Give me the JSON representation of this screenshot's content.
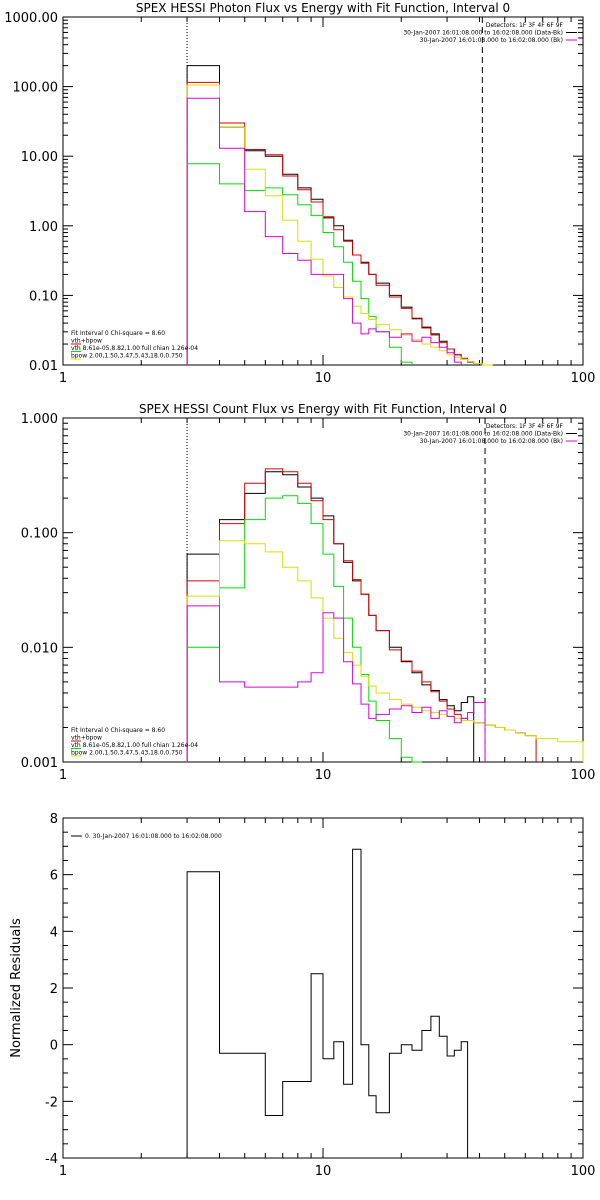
{
  "colors": {
    "data": "#000000",
    "model": "#dd0000",
    "vth": "#00dd00",
    "bpow": "#dddd00",
    "bk": "#dd00dd"
  },
  "chart_data": [
    {
      "type": "line",
      "title": "SPEX HESSI Photon Flux vs Energy with Fit Function, Interval 0",
      "xlabel": "",
      "ylabel": "",
      "xscale": "log",
      "yscale": "log",
      "xlim": [
        1,
        100
      ],
      "ylim": [
        0.01,
        1000
      ],
      "xticks": [
        {
          "v": 1,
          "label": "1"
        },
        {
          "v": 10,
          "label": "10"
        },
        {
          "v": 100,
          "label": "100"
        }
      ],
      "yticks": [
        {
          "v": 0.01,
          "label": "0.01"
        },
        {
          "v": 0.1,
          "label": "0.10"
        },
        {
          "v": 1,
          "label": "1.00"
        },
        {
          "v": 10,
          "label": "10.00"
        },
        {
          "v": 100,
          "label": "100.00"
        },
        {
          "v": 1000,
          "label": "1000.00"
        }
      ],
      "vlines": [
        {
          "x": 3,
          "style": "dotted"
        },
        {
          "x": 41,
          "style": "dashed"
        }
      ],
      "legend_right": {
        "placement": "top-right",
        "lines": [
          {
            "text": "Detectors: 1F 3F 4F 6F 9F",
            "color": ""
          },
          {
            "text": "30-Jan-2007 16:01:08.000 to 16:02:08.000 (Data-Bk)",
            "color": "data"
          },
          {
            "text": "30-Jan-2007 16:01:08.000 to 16:02:08.000 (Bk)",
            "color": "bk"
          }
        ]
      },
      "legend_left": {
        "placement": "bottom-left",
        "lines": [
          {
            "text": "Fit Interval 0   Chi-square = 8.60",
            "color": ""
          },
          {
            "text": "vth+bpow",
            "color": "model"
          },
          {
            "text": "vth 8.61e-05,8.82,1.00   full chian 1.26e-04",
            "color": "vth"
          },
          {
            "text": "bpow 2.00,1.50,3.47,5.43,18.0,0.750",
            "color": "bpow"
          }
        ]
      },
      "edges": [
        3,
        4,
        5,
        6,
        7,
        8,
        9,
        10,
        11,
        12,
        13,
        14,
        15,
        16,
        18,
        20,
        22,
        24,
        26,
        28,
        30,
        32,
        34,
        36,
        38,
        41,
        45,
        50
      ],
      "series": [
        {
          "name": "Data-Bk",
          "color": "data",
          "values": [
            200,
            26,
            12,
            10,
            5.5,
            3.5,
            2.4,
            1.3,
            1.0,
            0.62,
            0.38,
            0.3,
            0.2,
            0.15,
            0.1,
            0.068,
            0.047,
            0.035,
            0.028,
            0.022,
            0.017,
            0.014,
            0.012,
            0.011,
            0.0105
          ]
        },
        {
          "name": "vth+bpow",
          "color": "model",
          "values": [
            115,
            30,
            12.5,
            10.5,
            5.2,
            3.3,
            2.2,
            1.35,
            0.88,
            0.6,
            0.38,
            0.29,
            0.2,
            0.14,
            0.095,
            0.065,
            0.046,
            0.034,
            0.027,
            0.021,
            0.017,
            0.014,
            0.0125,
            0.0112,
            0.0105,
            0.01
          ]
        },
        {
          "name": "vth",
          "color": "vth",
          "values": [
            7.8,
            4.0,
            3.2,
            3.5,
            2.8,
            2.0,
            1.4,
            0.8,
            0.5,
            0.3,
            0.16,
            0.09,
            0.05,
            0.03,
            0.018,
            0.011
          ]
        },
        {
          "name": "bpow",
          "color": "bpow",
          "values": [
            105,
            26,
            6.5,
            2.7,
            1.2,
            0.6,
            0.33,
            0.19,
            0.13,
            0.095,
            0.07,
            0.055,
            0.045,
            0.038,
            0.032,
            0.027,
            0.023,
            0.02,
            0.018,
            0.016,
            0.014,
            0.013,
            0.012,
            0.0112,
            0.0105,
            0.01
          ]
        },
        {
          "name": "Bk",
          "color": "bk",
          "values": [
            68,
            13,
            1.6,
            0.7,
            0.4,
            0.32,
            0.2,
            0.2,
            0.2,
            0.09,
            0.04,
            0.028,
            0.033,
            0.03,
            0.025,
            0.028,
            0.022,
            0.025,
            0.021,
            0.018,
            0.015,
            0.011
          ]
        }
      ]
    },
    {
      "type": "line",
      "title": "SPEX HESSI Count Flux vs Energy with Fit Function, Interval 0",
      "xlabel": "",
      "ylabel": "",
      "xscale": "log",
      "yscale": "log",
      "xlim": [
        1,
        100
      ],
      "ylim": [
        0.001,
        1
      ],
      "xticks": [
        {
          "v": 1,
          "label": "1"
        },
        {
          "v": 10,
          "label": "10"
        },
        {
          "v": 100,
          "label": "100"
        }
      ],
      "yticks": [
        {
          "v": 0.001,
          "label": "0.001"
        },
        {
          "v": 0.01,
          "label": "0.010"
        },
        {
          "v": 0.1,
          "label": "0.100"
        },
        {
          "v": 1,
          "label": "1.000"
        }
      ],
      "vlines": [
        {
          "x": 3,
          "style": "dotted"
        },
        {
          "x": 42,
          "style": "dashed"
        }
      ],
      "legend_right": {
        "placement": "top-right",
        "lines": [
          {
            "text": "Detectors: 1F 3F 4F 6F 9F",
            "color": ""
          },
          {
            "text": "30-Jan-2007 16:01:08.000 to 16:02:08.000 (Data-Bk)",
            "color": "data"
          },
          {
            "text": "30-Jan-2007 16:01:08.000 to 16:02:08.000 (Bk)",
            "color": "bk"
          }
        ]
      },
      "legend_left": {
        "placement": "bottom-left",
        "lines": [
          {
            "text": "Fit Interval 0   Chi-square = 8.60",
            "color": ""
          },
          {
            "text": "vth+bpow",
            "color": "model"
          },
          {
            "text": "vth 8.61e-05,8.82,1.00   full chian 1.26e-04",
            "color": "vth"
          },
          {
            "text": "bpow 2.00,1.50,3.47,5.43,18.0,0.750",
            "color": "bpow"
          }
        ]
      },
      "edges": [
        3,
        4,
        5,
        6,
        7,
        8,
        9,
        10,
        11,
        12,
        13,
        14,
        15,
        16,
        18,
        20,
        22,
        24,
        26,
        28,
        30,
        32,
        34,
        36,
        38,
        42,
        46,
        50,
        55,
        60,
        66,
        72,
        80,
        88,
        100
      ],
      "series": [
        {
          "name": "Data-Bk",
          "color": "data",
          "values": [
            0.065,
            0.13,
            0.22,
            0.34,
            0.32,
            0.25,
            0.2,
            0.14,
            0.08,
            0.055,
            0.038,
            0.029,
            0.019,
            0.014,
            0.01,
            0.0075,
            0.006,
            0.0047,
            0.0042,
            0.0035,
            0.0031,
            0.0028,
            0.0033,
            0.0037
          ]
        },
        {
          "name": "vth+bpow",
          "color": "model",
          "values": [
            0.038,
            0.12,
            0.27,
            0.36,
            0.34,
            0.27,
            0.19,
            0.13,
            0.08,
            0.057,
            0.039,
            0.029,
            0.019,
            0.014,
            0.0095,
            0.0076,
            0.0062,
            0.005,
            0.0041,
            0.0034,
            0.0029,
            0.0026,
            0.0024,
            0.0023,
            0.0022,
            0.0021,
            0.002,
            0.0019,
            0.0018,
            0.0017
          ]
        },
        {
          "name": "vth",
          "color": "vth",
          "values": [
            0.01,
            0.033,
            0.13,
            0.2,
            0.21,
            0.18,
            0.12,
            0.065,
            0.034,
            0.018,
            0.01,
            0.0058,
            0.0034,
            0.0023,
            0.0016,
            0.0011,
            0.001
          ]
        },
        {
          "name": "bpow",
          "color": "bpow",
          "values": [
            0.028,
            0.085,
            0.08,
            0.068,
            0.05,
            0.038,
            0.027,
            0.018,
            0.012,
            0.009,
            0.007,
            0.0056,
            0.0046,
            0.004,
            0.0035,
            0.0032,
            0.003,
            0.0028,
            0.0027,
            0.0026,
            0.0025,
            0.0024,
            0.0023,
            0.0023,
            0.0022,
            0.0021,
            0.002,
            0.0019,
            0.0018,
            0.0017,
            0.0016,
            0.0016,
            0.0015,
            0.0015
          ]
        },
        {
          "name": "Bk",
          "color": "bk",
          "values": [
            0.023,
            0.005,
            0.0045,
            0.0045,
            0.0045,
            0.005,
            0.006,
            0.02,
            0.018,
            0.0075,
            0.0048,
            0.0032,
            0.0024,
            0.0026,
            0.0029,
            0.0031,
            0.0027,
            0.003,
            0.0024,
            0.0028,
            0.0025,
            0.0022,
            0.0024,
            0.0027,
            0.0033
          ]
        }
      ]
    },
    {
      "type": "line",
      "title": "",
      "xlabel": "",
      "ylabel": "Normalized Residuals",
      "xscale": "log",
      "yscale": "linear",
      "xlim": [
        1,
        100
      ],
      "ylim": [
        -4,
        8
      ],
      "xticks": [
        {
          "v": 1,
          "label": "1"
        },
        {
          "v": 10,
          "label": "10"
        },
        {
          "v": 100,
          "label": "100"
        }
      ],
      "yticks": [
        {
          "v": -4,
          "label": "-4"
        },
        {
          "v": -2,
          "label": "-2"
        },
        {
          "v": 0,
          "label": "0"
        },
        {
          "v": 2,
          "label": "2"
        },
        {
          "v": 4,
          "label": "4"
        },
        {
          "v": 6,
          "label": "6"
        },
        {
          "v": 8,
          "label": "8"
        }
      ],
      "legend_left": {
        "placement": "top-left",
        "lines": [
          {
            "text": "0. 30-Jan-2007 16:01:08.000 to 16:02:08.000",
            "color": "data"
          }
        ]
      },
      "edges": [
        3,
        4,
        5,
        6,
        7,
        8,
        9,
        10,
        11,
        12,
        13,
        14,
        15,
        16,
        18,
        20,
        22,
        24,
        26,
        28,
        30,
        32,
        34,
        36,
        38,
        41
      ],
      "series": [
        {
          "name": "0. 30-Jan-2007 16:01:08.000 to 16:02:08.000",
          "color": "data",
          "values": [
            6.1,
            -0.3,
            -0.3,
            -2.5,
            -1.3,
            -1.3,
            2.5,
            -0.5,
            0.1,
            -1.4,
            6.9,
            0.0,
            -1.8,
            -2.4,
            -0.3,
            0.0,
            -0.2,
            0.5,
            1.0,
            0.3,
            -0.4,
            -0.2,
            0.1,
            -4.0,
            -4.0
          ]
        }
      ]
    }
  ]
}
